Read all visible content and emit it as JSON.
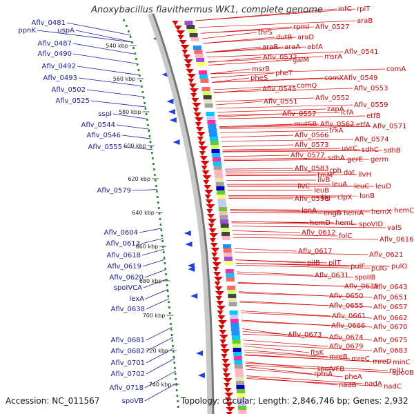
{
  "title": "Anoxybacillus flavithermus WK1, complete genome",
  "accession_line": "Accession: NC_011567",
  "topology_line": "Topology: circular; Length: 2,846,746 bp; Genes: 2,932",
  "colors": {
    "left_label": "#1a1aa6",
    "right_label": "#d40000",
    "cds_arrow": "#e00000",
    "blue_gene": "#1f3fe0",
    "tick_dots": "#1e8a1e"
  },
  "ticks": [
    {
      "label": "540 kbp",
      "y": 540
    },
    {
      "label": "560 kbp",
      "y": 560
    },
    {
      "label": "580 kbp",
      "y": 580
    },
    {
      "label": "600 kbp",
      "y": 600
    },
    {
      "label": "620 kbp",
      "y": 620
    },
    {
      "label": "640 kbp",
      "y": 640
    },
    {
      "label": "660 kbp",
      "y": 660
    },
    {
      "label": "680 kbp",
      "y": 680
    },
    {
      "label": "700 kbp",
      "y": 700
    },
    {
      "label": "720 kbp",
      "y": 720
    },
    {
      "label": "740 kbp",
      "y": 740
    }
  ],
  "left_labels": [
    "ppnK",
    "Aflv_0481",
    "uspA",
    "Aflv_0487",
    "Aflv_0490",
    "Aflv_0492",
    "Aflv_0493",
    "Aflv_0502",
    "Aflv_0525",
    "sspI",
    "Aflv_0544",
    "Aflv_0546",
    "Aflv_0555",
    "Aflv_0579",
    "Aflv_0604",
    "Aflv_0613",
    "Aflv_0618",
    "Aflv_0619",
    "Aflv_0620",
    "spoIVCA",
    "lexA",
    "Aflv_0638",
    "Aflv_0681",
    "Aflv_0682",
    "Aflv_0701",
    "Aflv_0702",
    "Aflv_0718",
    "spoVB"
  ],
  "right_labels": [
    "infC",
    "rplT",
    "rpmI",
    "Aflv_0527",
    "araB",
    "thrS",
    "dutB",
    "araD",
    "araR",
    "araA",
    "abfA",
    "Aflv_0532",
    "galM",
    "msrA",
    "Aflv_0541",
    "msrB",
    "pheS",
    "pheT",
    "comA",
    "comX",
    "Aflv_0549",
    "Aflv_0545",
    "comQ",
    "Aflv_0553",
    "Aflv_0551",
    "Aflv_0552",
    "zapA",
    "Aflv_0559",
    "Aflv_0557",
    "lcfA",
    "etfB",
    "mutSB",
    "Aflv_0562",
    "etfA",
    "Aflv_0571",
    "Aflv_0566",
    "trxA",
    "Aflv_0574",
    "Aflv_0573",
    "uvrC",
    "sdhC",
    "sdhB",
    "Aflv_0577",
    "sdhA",
    "gerE",
    "germ",
    "Aflv_0583",
    "rph",
    "dat",
    "tmM",
    "ilvB",
    "ilvH",
    "ilvC",
    "leuB",
    "leuA",
    "leuC",
    "leuD",
    "Aflv_0598",
    "tig",
    "clpX",
    "lonB",
    "lonA",
    "engB",
    "hemA",
    "hemX",
    "hemC",
    "hemD",
    "hemL",
    "spoVID",
    "Aflv_0612",
    "valS",
    "folC",
    "Aflv_0616",
    "Aflv_0617",
    "Aflv_0621",
    "pilB",
    "pilT",
    "pulF",
    "pulG",
    "pulO",
    "Aflv_0631",
    "spoIIB",
    "Aflv_0639",
    "Aflv_0643",
    "Aflv_0650",
    "Aflv_0651",
    "Aflv_0655",
    "Aflv_0657",
    "Aflv_0661",
    "Aflv_0662",
    "Aflv_0666",
    "Aflv_0670",
    "Aflv_0673",
    "Aflv_0674",
    "Aflv_0675",
    "Aflv_0679",
    "ftsK",
    "Aflv_0683",
    "mreB",
    "mreC",
    "mreD",
    "minC",
    "spoIVFB",
    "rplU",
    "rpmA",
    "spo0B",
    "pheA",
    "nadB",
    "nadA",
    "nadC"
  ]
}
